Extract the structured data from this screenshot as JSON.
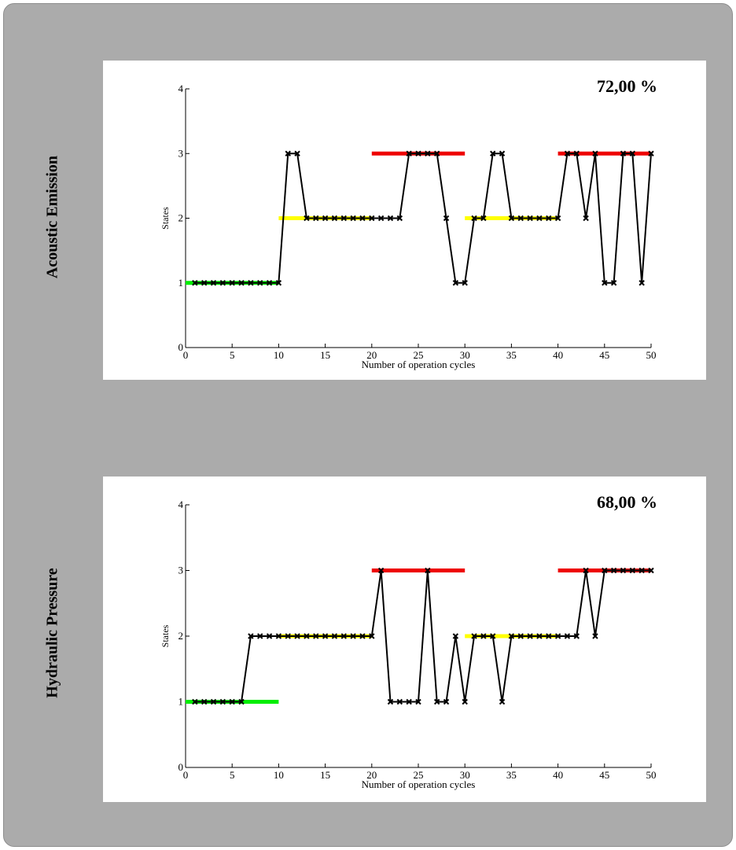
{
  "colors": {
    "green": "#00ee00",
    "yellow": "#ffff00",
    "red": "#ee0000",
    "line": "#000000",
    "background": "#ababab"
  },
  "chart_data": [
    {
      "type": "line",
      "row_label": "Acoustic Emission",
      "annotation": "72,00 %",
      "xlabel": "Number of operation cycles",
      "ylabel": "States",
      "xlim": [
        0,
        50
      ],
      "ylim": [
        0,
        4
      ],
      "x_ticks": [
        0,
        5,
        10,
        15,
        20,
        25,
        30,
        35,
        40,
        45,
        50
      ],
      "y_ticks": [
        0,
        1,
        2,
        3,
        4
      ],
      "reference_segments": [
        {
          "x": [
            0,
            10
          ],
          "y": 1,
          "color": "green"
        },
        {
          "x": [
            10,
            20
          ],
          "y": 2,
          "color": "yellow"
        },
        {
          "x": [
            20,
            30
          ],
          "y": 3,
          "color": "red"
        },
        {
          "x": [
            30,
            40
          ],
          "y": 2,
          "color": "yellow"
        },
        {
          "x": [
            40,
            50
          ],
          "y": 3,
          "color": "red"
        }
      ],
      "series": [
        {
          "x": [
            1,
            2,
            3,
            4,
            5,
            6,
            7,
            8,
            9,
            10,
            11,
            12,
            13,
            14,
            15,
            16,
            17,
            18,
            19,
            20,
            21,
            22,
            23,
            24,
            25,
            26,
            27,
            28,
            29,
            30,
            31,
            32,
            33,
            34,
            35,
            36,
            37,
            38,
            39,
            40,
            41,
            42,
            43,
            44,
            45,
            46,
            47,
            48,
            49,
            50
          ],
          "values": [
            1,
            1,
            1,
            1,
            1,
            1,
            1,
            1,
            1,
            1,
            3,
            3,
            2,
            2,
            2,
            2,
            2,
            2,
            2,
            2,
            2,
            2,
            2,
            3,
            3,
            3,
            3,
            2,
            1,
            1,
            2,
            2,
            3,
            3,
            2,
            2,
            2,
            2,
            2,
            2,
            3,
            3,
            2,
            3,
            1,
            1,
            3,
            3,
            1,
            3
          ]
        }
      ]
    },
    {
      "type": "line",
      "row_label": "Hydraulic Pressure",
      "annotation": "68,00 %",
      "xlabel": "Number of operation cycles",
      "ylabel": "States",
      "xlim": [
        0,
        50
      ],
      "ylim": [
        0,
        4
      ],
      "x_ticks": [
        0,
        5,
        10,
        15,
        20,
        25,
        30,
        35,
        40,
        45,
        50
      ],
      "y_ticks": [
        0,
        1,
        2,
        3,
        4
      ],
      "reference_segments": [
        {
          "x": [
            0,
            10
          ],
          "y": 1,
          "color": "green"
        },
        {
          "x": [
            10,
            20
          ],
          "y": 2,
          "color": "yellow"
        },
        {
          "x": [
            20,
            30
          ],
          "y": 3,
          "color": "red"
        },
        {
          "x": [
            30,
            40
          ],
          "y": 2,
          "color": "yellow"
        },
        {
          "x": [
            40,
            50
          ],
          "y": 3,
          "color": "red"
        }
      ],
      "series": [
        {
          "x": [
            1,
            2,
            3,
            4,
            5,
            6,
            7,
            8,
            9,
            10,
            11,
            12,
            13,
            14,
            15,
            16,
            17,
            18,
            19,
            20,
            21,
            22,
            23,
            24,
            25,
            26,
            27,
            28,
            29,
            30,
            31,
            32,
            33,
            34,
            35,
            36,
            37,
            38,
            39,
            40,
            41,
            42,
            43,
            44,
            45,
            46,
            47,
            48,
            49,
            50
          ],
          "values": [
            1,
            1,
            1,
            1,
            1,
            1,
            2,
            2,
            2,
            2,
            2,
            2,
            2,
            2,
            2,
            2,
            2,
            2,
            2,
            2,
            3,
            1,
            1,
            1,
            1,
            3,
            1,
            1,
            2,
            1,
            2,
            2,
            2,
            1,
            2,
            2,
            2,
            2,
            2,
            2,
            2,
            2,
            3,
            2,
            3,
            3,
            3,
            3,
            3,
            3
          ]
        }
      ]
    }
  ]
}
